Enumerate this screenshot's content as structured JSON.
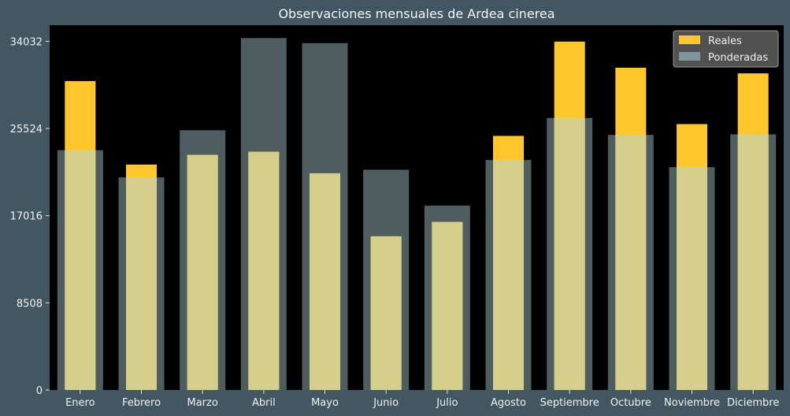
{
  "chart_data": {
    "type": "bar",
    "title": "Observaciones mensuales de Ardea cinerea",
    "xlabel": "",
    "ylabel": "",
    "categories": [
      "Enero",
      "Febrero",
      "Marzo",
      "Abril",
      "Mayo",
      "Junio",
      "Julio",
      "Agosto",
      "Septiembre",
      "Octubre",
      "Noviembre",
      "Diciembre"
    ],
    "series": [
      {
        "name": "Reales",
        "color": "#ffc72c",
        "values": [
          30150,
          22000,
          22950,
          23250,
          21150,
          15000,
          16400,
          24800,
          34000,
          31450,
          25950,
          30900
        ]
      },
      {
        "name": "Ponderadas",
        "color": "#7f949b",
        "values": [
          23400,
          20750,
          25350,
          34350,
          33850,
          21500,
          18000,
          22450,
          26550,
          24900,
          21750,
          24950
        ]
      }
    ],
    "ylim": [
      0,
      35600
    ],
    "yticks": [
      0,
      8508,
      17016,
      25524,
      34032
    ],
    "legend": {
      "position": "top-right",
      "entries": [
        "Reales",
        "Ponderadas"
      ]
    },
    "grid": false,
    "colors": {
      "background": "#435763",
      "plot_area": "#000000",
      "text": "#f0f0f0",
      "overlap": "#d4d08c",
      "legend_box": "#555555"
    }
  }
}
